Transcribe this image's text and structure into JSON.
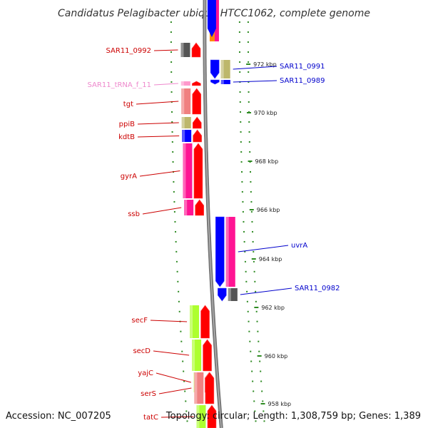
{
  "title": "Candidatus Pelagibacter ubique HTCC1062, complete genome",
  "footer": {
    "accession": "Accession: NC_007205",
    "summary": "Topology: circular; Length: 1,308,759 bp; Genes: 1,389"
  },
  "colors": {
    "backbone": "#777777",
    "tick": "#2e8b22",
    "forward_label": "#cc0000",
    "reverse_label": "#0000cc",
    "trna_label": "#ee88cc"
  },
  "ruler": {
    "unit": "kbp",
    "ticks": [
      {
        "label": "972 kbp"
      },
      {
        "label": "970 kbp"
      },
      {
        "label": "968 kbp"
      },
      {
        "label": "966 kbp"
      },
      {
        "label": "964 kbp"
      },
      {
        "label": "962 kbp"
      },
      {
        "label": "960 kbp"
      },
      {
        "label": "958 kbp"
      }
    ]
  },
  "forward_genes": [
    {
      "label": "SAR11_0992",
      "colors": [
        "#555555"
      ]
    },
    {
      "label": "SAR11_tRNA_f_11",
      "colors": [
        "#ff99cc"
      ]
    },
    {
      "label": "tgt",
      "colors": [
        "#f08080"
      ]
    },
    {
      "label": "ppiB",
      "colors": [
        "#bdb76b"
      ]
    },
    {
      "label": "kdtB",
      "colors": [
        "#0000ff"
      ]
    },
    {
      "label": "gyrA",
      "colors": [
        "#ff1493"
      ]
    },
    {
      "label": "ssb",
      "colors": [
        "#ff1493"
      ]
    },
    {
      "label": "secF",
      "colors": [
        "#adff2f"
      ]
    },
    {
      "label": "secD",
      "colors": [
        "#adff2f"
      ]
    },
    {
      "label": "yajC",
      "colors": [
        "#adff2f"
      ]
    },
    {
      "label": "serS",
      "colors": [
        "#f08080"
      ]
    },
    {
      "label": "tatC",
      "colors": [
        "#adff2f"
      ]
    }
  ],
  "reverse_genes": [
    {
      "label": "SAR11_0991",
      "colors": [
        "#bdb76b"
      ]
    },
    {
      "label": "SAR11_0989",
      "colors": [
        "#0000ff"
      ]
    },
    {
      "label": "uvrA",
      "colors": [
        "#ff1493"
      ]
    },
    {
      "label": "SAR11_0982",
      "colors": [
        "#555555"
      ]
    }
  ]
}
